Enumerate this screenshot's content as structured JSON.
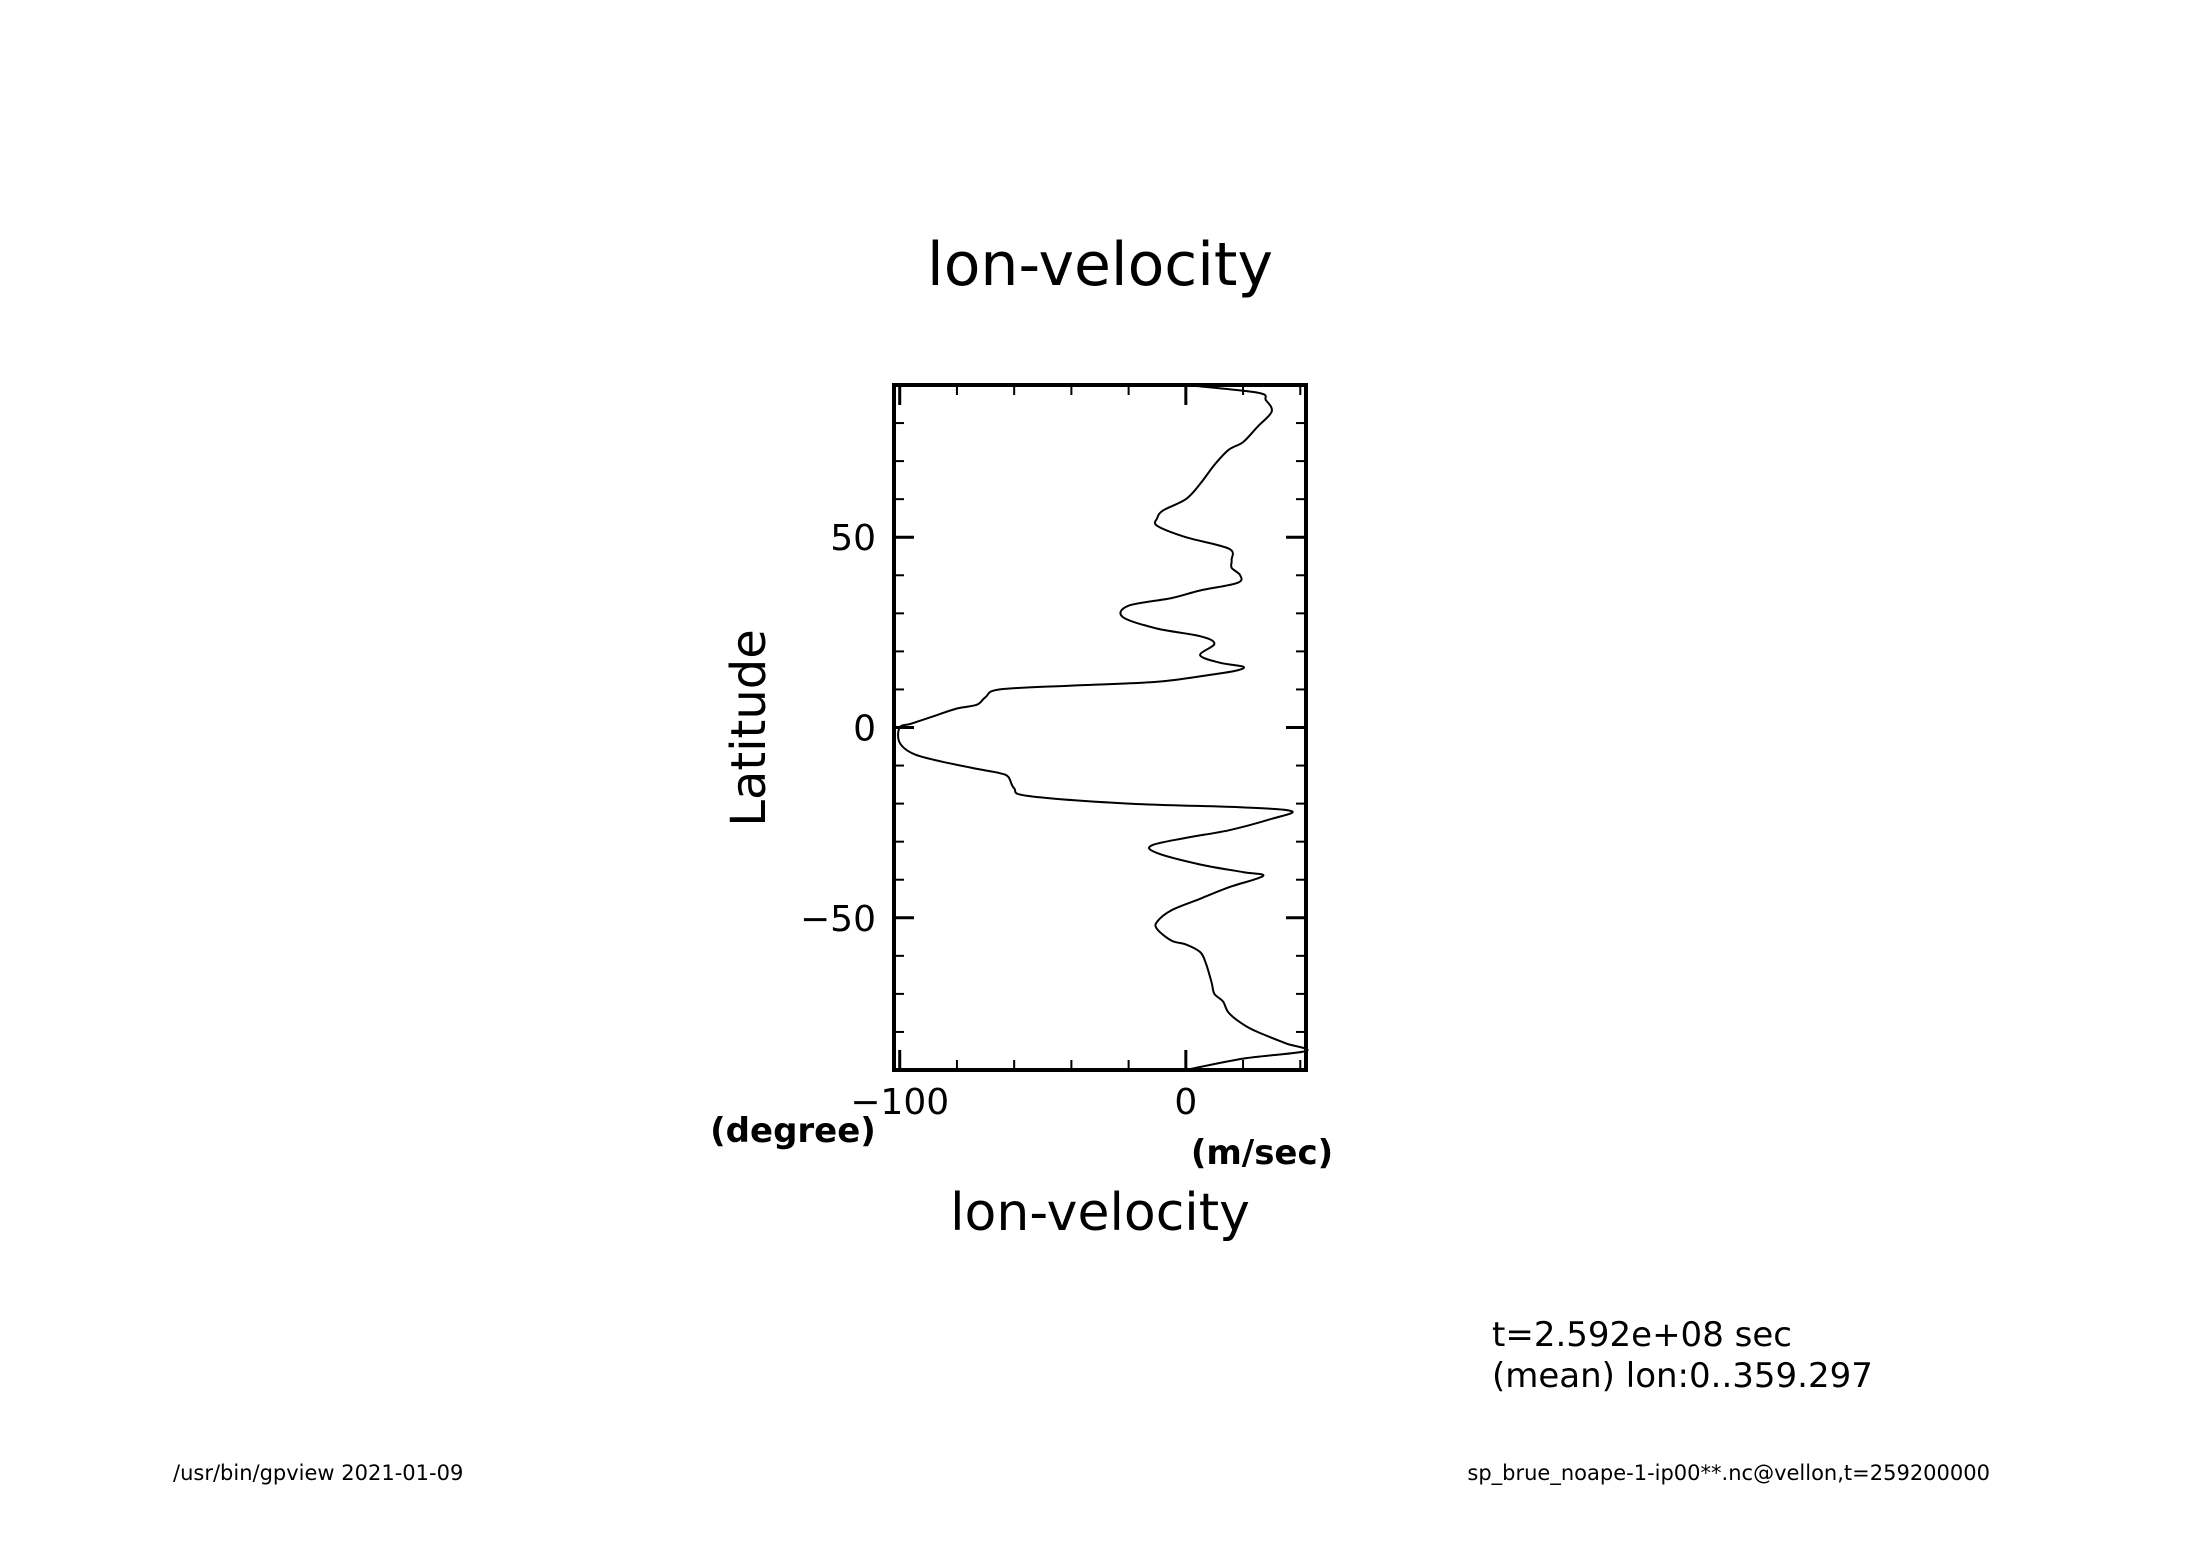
{
  "chart_data": {
    "type": "line",
    "title": "lon-velocity",
    "xlabel": "lon-velocity",
    "xunit": "(m/sec)",
    "ylabel": "Latitude",
    "yunit": "(degree)",
    "xlim": [
      -102,
      42
    ],
    "ylim": [
      -90,
      90
    ],
    "xticks": [
      -100,
      0
    ],
    "xtick_labels": [
      "−100",
      "0"
    ],
    "yticks": [
      -50,
      0,
      50
    ],
    "ytick_labels": [
      "−50",
      "0",
      "50"
    ],
    "grid": false,
    "series": [
      {
        "name": "",
        "points": [
          [
            0,
            -90
          ],
          [
            20,
            -87
          ],
          [
            42,
            -85
          ],
          [
            35,
            -83
          ],
          [
            25,
            -80
          ],
          [
            20,
            -78
          ],
          [
            15,
            -75
          ],
          [
            13,
            -72
          ],
          [
            10,
            -70
          ],
          [
            9,
            -67
          ],
          [
            7,
            -62
          ],
          [
            5,
            -59
          ],
          [
            0,
            -57
          ],
          [
            -5,
            -56
          ],
          [
            -10,
            -53
          ],
          [
            -10,
            -51
          ],
          [
            -5,
            -48
          ],
          [
            5,
            -45
          ],
          [
            15,
            -42
          ],
          [
            27,
            -39
          ],
          [
            20,
            -38
          ],
          [
            5,
            -36
          ],
          [
            -10,
            -33
          ],
          [
            -12,
            -31
          ],
          [
            0,
            -29
          ],
          [
            15,
            -27
          ],
          [
            30,
            -24
          ],
          [
            37,
            -22
          ],
          [
            20,
            -21
          ],
          [
            -20,
            -20
          ],
          [
            -55,
            -18
          ],
          [
            -60,
            -16
          ],
          [
            -62,
            -13
          ],
          [
            -65,
            -12
          ],
          [
            -72,
            -11
          ],
          [
            -85,
            -9
          ],
          [
            -95,
            -7
          ],
          [
            -100,
            -4
          ],
          [
            -100,
            0
          ],
          [
            -96,
            1
          ],
          [
            -88,
            3
          ],
          [
            -80,
            5
          ],
          [
            -73,
            6
          ],
          [
            -70,
            8
          ],
          [
            -65,
            10
          ],
          [
            -40,
            11
          ],
          [
            -10,
            12
          ],
          [
            10,
            14
          ],
          [
            18,
            15
          ],
          [
            20,
            16
          ],
          [
            12,
            17
          ],
          [
            5,
            19
          ],
          [
            10,
            22
          ],
          [
            5,
            24
          ],
          [
            -10,
            26
          ],
          [
            -22,
            29
          ],
          [
            -20,
            32
          ],
          [
            -5,
            34
          ],
          [
            5,
            36
          ],
          [
            18,
            38
          ],
          [
            19,
            40
          ],
          [
            16,
            42
          ],
          [
            16,
            44
          ],
          [
            15,
            47
          ],
          [
            0,
            50
          ],
          [
            -10,
            53
          ],
          [
            -10,
            55
          ],
          [
            -8,
            57
          ],
          [
            0,
            60
          ],
          [
            5,
            64
          ],
          [
            10,
            69
          ],
          [
            15,
            73
          ],
          [
            20,
            75
          ],
          [
            25,
            79
          ],
          [
            30,
            83
          ],
          [
            28,
            86
          ],
          [
            25,
            88
          ],
          [
            0,
            90
          ]
        ]
      }
    ],
    "annotations": [
      "t=2.592e+08 sec",
      "(mean) lon:0..359.297"
    ]
  },
  "footer": {
    "left": "/usr/bin/gpview   2021-01-09",
    "right": "sp_brue_noape-1-ip00**.nc@vellon,t=259200000"
  },
  "colors": {
    "line": "#000000",
    "background": "#ffffff"
  }
}
